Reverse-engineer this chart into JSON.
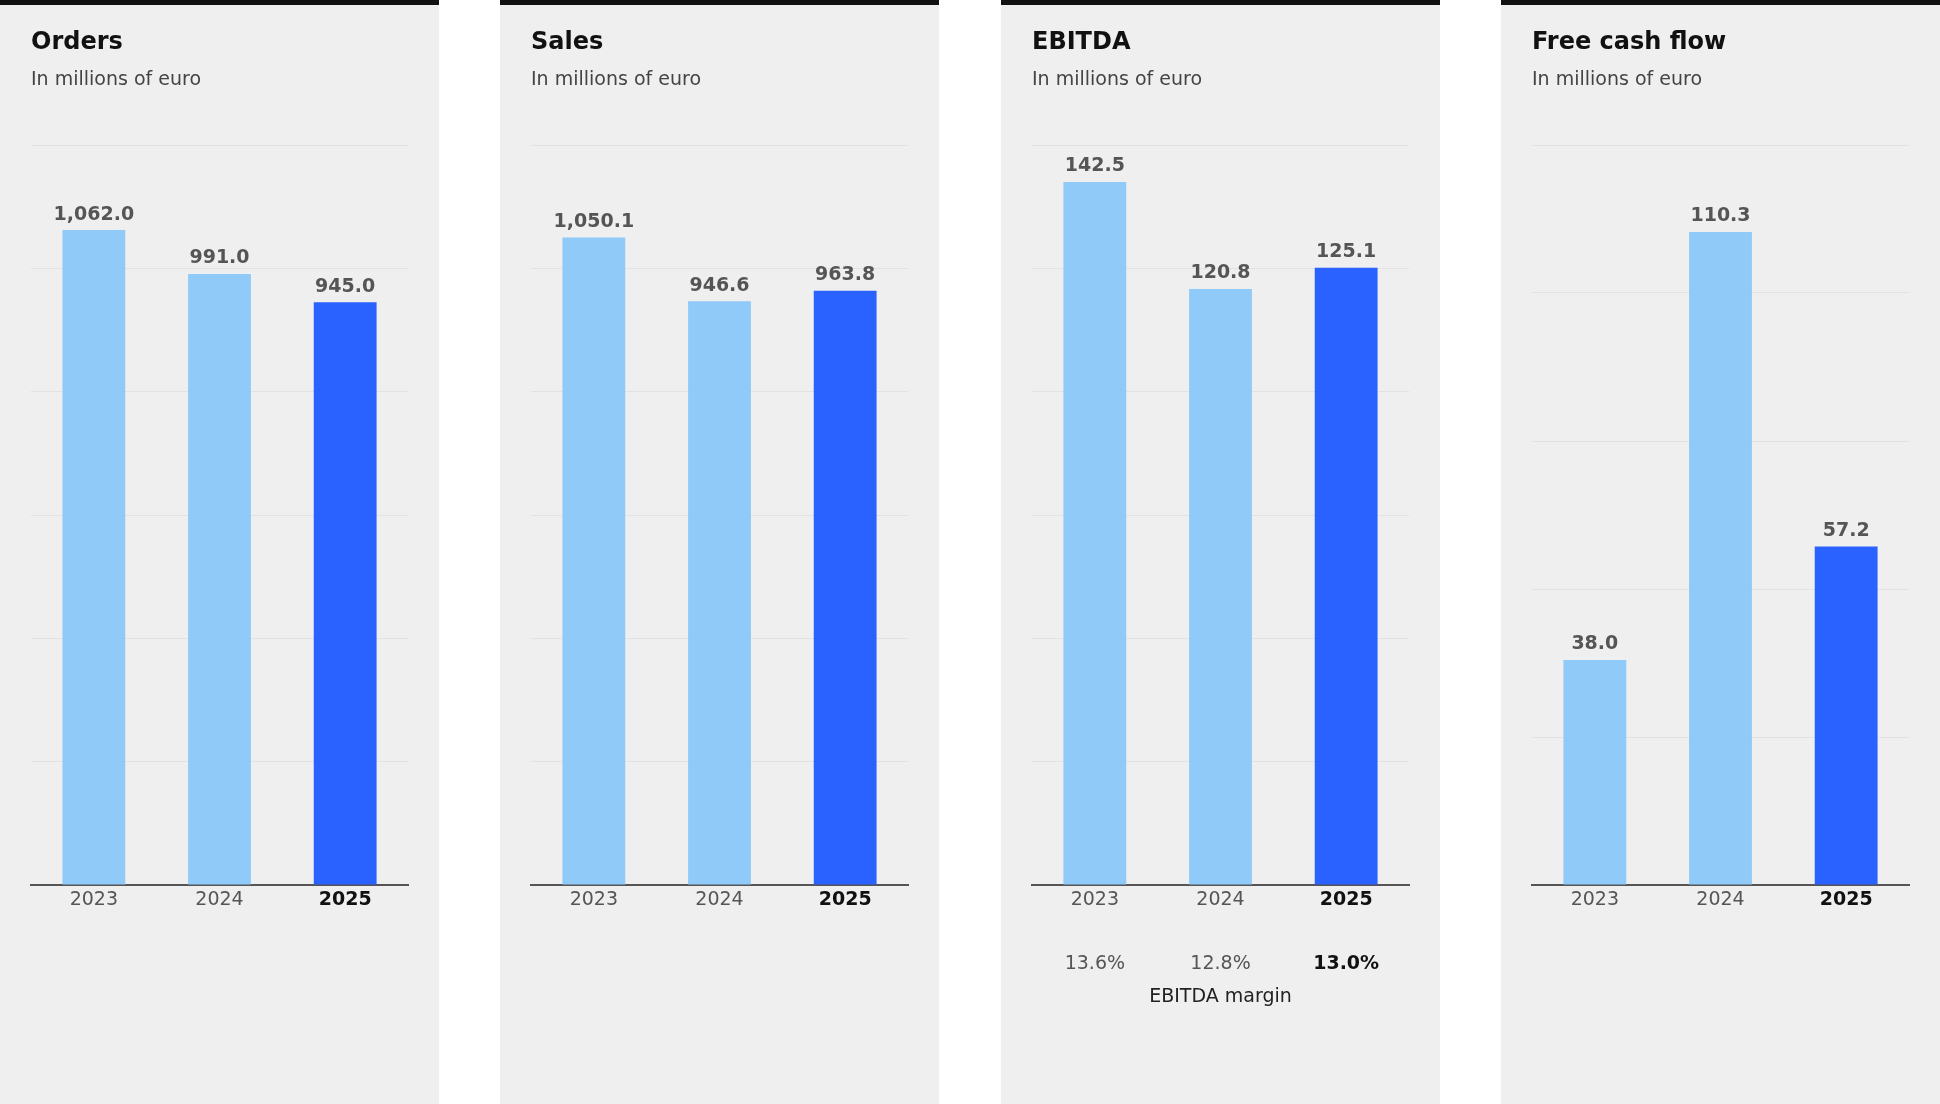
{
  "chart_data": [
    {
      "type": "bar",
      "title": "Orders",
      "subtitle": "In millions of euro",
      "categories": [
        "2023",
        "2024",
        "2025"
      ],
      "values": [
        1062.0,
        991.0,
        945.0
      ],
      "colors": [
        "#90caf9",
        "#90caf9",
        "#2962ff"
      ],
      "ylim": [
        0,
        1200
      ],
      "yticks": [
        {
          "value": 0,
          "label": null
        },
        {
          "value": 200,
          "label": null
        },
        {
          "value": 400,
          "label": null
        },
        {
          "value": 600,
          "label": null
        },
        {
          "value": 800,
          "label": null
        },
        {
          "value": 1000,
          "label": null
        },
        {
          "value": 1200,
          "label": null
        }
      ],
      "grid": "y",
      "tick_labels": "x",
      "data_labels": true,
      "value_labels": [
        "1,062.0",
        "991.0",
        "945.0"
      ]
    },
    {
      "type": "bar",
      "title": "Sales",
      "subtitle": "In millions of euro",
      "categories": [
        "2023",
        "2024",
        "2025"
      ],
      "values": [
        1050.1,
        946.6,
        963.8
      ],
      "colors": [
        "#90caf9",
        "#90caf9",
        "#2962ff"
      ],
      "ylim": [
        0,
        1200
      ],
      "yticks": [
        {
          "value": 0,
          "label": null
        },
        {
          "value": 200,
          "label": null
        },
        {
          "value": 400,
          "label": null
        },
        {
          "value": 600,
          "label": null
        },
        {
          "value": 800,
          "label": null
        },
        {
          "value": 1000,
          "label": null
        },
        {
          "value": 1200,
          "label": null
        }
      ],
      "grid": "y",
      "tick_labels": "x",
      "data_labels": true,
      "value_labels": [
        "1,050.1",
        "946.6",
        "963.8"
      ]
    },
    {
      "type": "bar",
      "title": "EBITDA",
      "subtitle": "In millions of euro",
      "categories": [
        "2023",
        "2024",
        "2025"
      ],
      "values": [
        142.5,
        120.8,
        125.1
      ],
      "colors": [
        "#90caf9",
        "#90caf9",
        "#2962ff"
      ],
      "ylim": [
        0,
        150
      ],
      "yticks": [
        {
          "value": 0,
          "label": null
        },
        {
          "value": 25,
          "label": null
        },
        {
          "value": 50,
          "label": null
        },
        {
          "value": 75,
          "label": null
        },
        {
          "value": 100,
          "label": null
        },
        {
          "value": 125,
          "label": null
        },
        {
          "value": 150,
          "label": null
        }
      ],
      "grid": "y",
      "tick_labels": "x",
      "data_labels": true,
      "value_labels": [
        "142.5",
        "120.8",
        "125.1"
      ],
      "annotations": [
        "13.6%",
        "12.8%",
        "13.0%",
        "EBITDA margin"
      ]
    },
    {
      "type": "bar",
      "title": "Free cash flow",
      "subtitle": "In millions of euro",
      "categories": [
        "2023",
        "2024",
        "2025"
      ],
      "values": [
        38.0,
        110.3,
        57.2
      ],
      "colors": [
        "#90caf9",
        "#90caf9",
        "#2962ff"
      ],
      "ylim": [
        0,
        125
      ],
      "yticks": [
        {
          "value": 0,
          "label": null
        },
        {
          "value": 25,
          "label": null
        },
        {
          "value": 50,
          "label": null
        },
        {
          "value": 75,
          "label": null
        },
        {
          "value": 100,
          "label": null
        },
        {
          "value": 125,
          "label": null
        }
      ],
      "grid": "y",
      "tick_labels": "x",
      "data_labels": true,
      "value_labels": [
        "38.0",
        "110.3",
        "57.2"
      ]
    }
  ]
}
